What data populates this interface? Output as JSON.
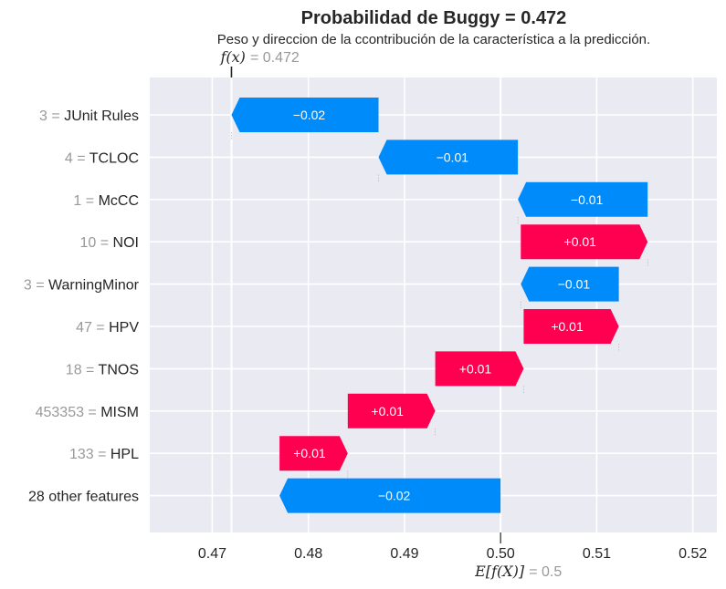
{
  "chart_data": {
    "type": "bar",
    "title": "Probabilidad de Buggy = 0.472",
    "subtitle": "Peso y direccion de la ccontribución de la característica a la predicción.",
    "base_value": 0.5,
    "output_value": 0.472,
    "fx_label": "f(x)",
    "fx_value": "= 0.472",
    "efx_label": "E[f(X)]",
    "efx_value": "= 0.5",
    "xlim": [
      0.4635,
      0.5225
    ],
    "xticks": [
      "0.47",
      "0.48",
      "0.49",
      "0.50",
      "0.51",
      "0.52"
    ],
    "grid": true,
    "colors": {
      "positive": "#ff0051",
      "negative": "#008bfb",
      "background": "#eaeaf2",
      "grid": "#ffffff"
    },
    "features": [
      {
        "value": "3",
        "name": "JUnit Rules",
        "start": 0.4873,
        "end": 0.472,
        "label": "−0.02"
      },
      {
        "value": "4",
        "name": "TCLOC",
        "start": 0.5018,
        "end": 0.4873,
        "label": "−0.01"
      },
      {
        "value": "1",
        "name": "McCC",
        "start": 0.5153,
        "end": 0.5018,
        "label": "−0.01"
      },
      {
        "value": "10",
        "name": "NOI",
        "start": 0.5021,
        "end": 0.5153,
        "label": "+0.01"
      },
      {
        "value": "3",
        "name": "WarningMinor",
        "start": 0.5123,
        "end": 0.5021,
        "label": "−0.01"
      },
      {
        "value": "47",
        "name": "HPV",
        "start": 0.5024,
        "end": 0.5123,
        "label": "+0.01"
      },
      {
        "value": "18",
        "name": "TNOS",
        "start": 0.4932,
        "end": 0.5024,
        "label": "+0.01"
      },
      {
        "value": "453353",
        "name": "MISM",
        "start": 0.4841,
        "end": 0.4932,
        "label": "+0.01"
      },
      {
        "value": "133",
        "name": "HPL",
        "start": 0.477,
        "end": 0.4841,
        "label": "+0.01"
      },
      {
        "value": "",
        "name": "28 other features",
        "start": 0.5,
        "end": 0.477,
        "label": "−0.02"
      }
    ]
  }
}
